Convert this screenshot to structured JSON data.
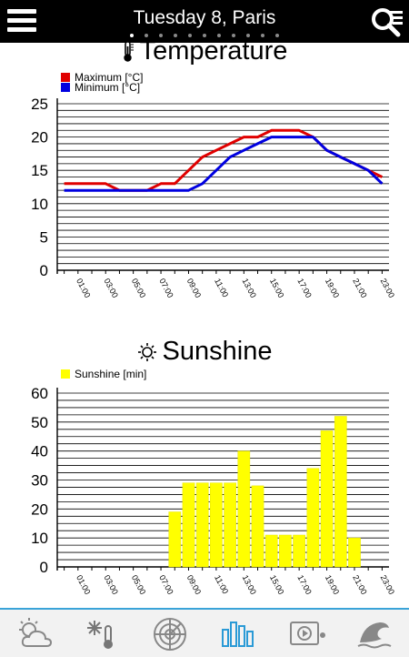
{
  "header": {
    "title": "Tuesday 8, Paris",
    "page_count": 11,
    "active_page": 0
  },
  "temperature": {
    "title": "Temperature",
    "icon": "thermometer-icon",
    "legend": [
      {
        "label": "Maximum [°C]",
        "color": "#e00000"
      },
      {
        "label": "Minimum [°C]",
        "color": "#0000e0"
      }
    ]
  },
  "sunshine": {
    "title": "Sunshine",
    "icon": "sun-icon",
    "legend": [
      {
        "label": "Sunshine [min]",
        "color": "#ffff00"
      }
    ]
  },
  "chart_data": [
    {
      "type": "line",
      "title": "Temperature",
      "x": [
        "00:00",
        "01:00",
        "02:00",
        "03:00",
        "04:00",
        "05:00",
        "06:00",
        "07:00",
        "08:00",
        "09:00",
        "10:00",
        "11:00",
        "12:00",
        "13:00",
        "14:00",
        "15:00",
        "16:00",
        "17:00",
        "18:00",
        "19:00",
        "20:00",
        "21:00",
        "22:00",
        "23:00"
      ],
      "tick_labels": [
        "01:00",
        "03:00",
        "05:00",
        "07:00",
        "09:00",
        "11:00",
        "13:00",
        "15:00",
        "17:00",
        "19:00",
        "21:00",
        "23:00"
      ],
      "ylim": [
        0,
        25
      ],
      "yticks": [
        0,
        5,
        10,
        15,
        20,
        25
      ],
      "grid": true,
      "legend_position": "top-left",
      "series": [
        {
          "name": "Maximum [°C]",
          "color": "#e00000",
          "values": [
            13,
            13,
            13,
            13,
            12,
            12,
            12,
            13,
            13,
            15,
            17,
            18,
            19,
            20,
            20,
            21,
            21,
            21,
            20,
            18,
            17,
            16,
            15,
            14
          ]
        },
        {
          "name": "Minimum [°C]",
          "color": "#0000e0",
          "values": [
            12,
            12,
            12,
            12,
            12,
            12,
            12,
            12,
            12,
            12,
            13,
            15,
            17,
            18,
            19,
            20,
            20,
            20,
            20,
            18,
            17,
            16,
            15,
            13
          ]
        }
      ]
    },
    {
      "type": "bar",
      "title": "Sunshine",
      "x": [
        "00:00",
        "01:00",
        "02:00",
        "03:00",
        "04:00",
        "05:00",
        "06:00",
        "07:00",
        "08:00",
        "09:00",
        "10:00",
        "11:00",
        "12:00",
        "13:00",
        "14:00",
        "15:00",
        "16:00",
        "17:00",
        "18:00",
        "19:00",
        "20:00",
        "21:00",
        "22:00",
        "23:00"
      ],
      "tick_labels": [
        "01:00",
        "03:00",
        "05:00",
        "07:00",
        "09:00",
        "11:00",
        "13:00",
        "15:00",
        "17:00",
        "19:00",
        "21:00",
        "23:00"
      ],
      "ylim": [
        0,
        60
      ],
      "yticks": [
        0,
        10,
        20,
        30,
        40,
        50,
        60
      ],
      "grid": true,
      "legend_position": "top-left",
      "series": [
        {
          "name": "Sunshine [min]",
          "color": "#ffff00",
          "values": [
            0,
            0,
            0,
            0,
            0,
            0,
            0,
            0,
            19,
            29,
            29,
            29,
            29,
            40,
            28,
            11,
            11,
            11,
            34,
            47,
            52,
            10,
            0,
            0
          ]
        }
      ]
    }
  ],
  "bottom_nav": [
    {
      "name": "forecast-tab",
      "icon": "partly-cloudy-icon",
      "active": false
    },
    {
      "name": "weather-details-tab",
      "icon": "snow-thermometer-icon",
      "active": false
    },
    {
      "name": "radar-tab",
      "icon": "radar-icon",
      "active": false
    },
    {
      "name": "charts-tab",
      "icon": "bar-chart-icon",
      "active": true
    },
    {
      "name": "video-tab",
      "icon": "video-icon",
      "active": false
    },
    {
      "name": "marine-tab",
      "icon": "wave-icon",
      "active": false
    }
  ]
}
